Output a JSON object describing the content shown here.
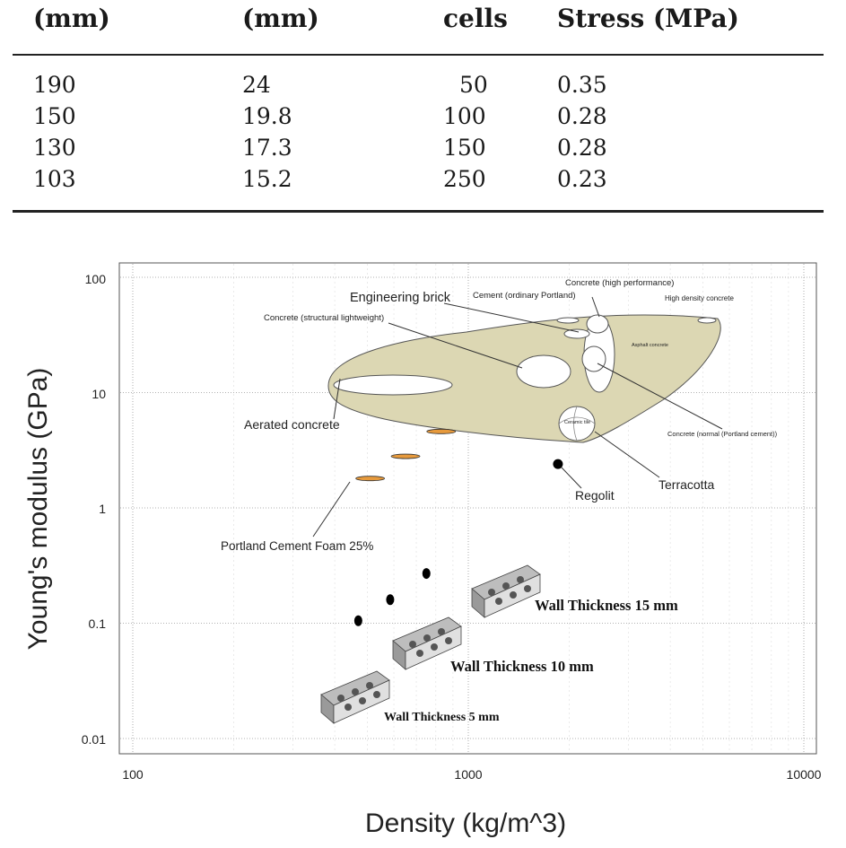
{
  "table": {
    "headers": [
      "(mm)",
      "(mm)",
      "cells",
      "Stress (MPa)"
    ],
    "rows": [
      [
        "190",
        "24",
        "50",
        "0.35"
      ],
      [
        "150",
        "19.8",
        "100",
        "0.28"
      ],
      [
        "130",
        "17.3",
        "150",
        "0.28"
      ],
      [
        "103",
        "15.2",
        "250",
        "0.23"
      ]
    ]
  },
  "chart_data": {
    "type": "scatter",
    "xlabel": "Density (kg/m^3)",
    "ylabel": "Young's modulus (GPa)",
    "x_scale": "log",
    "y_scale": "log",
    "xlim": [
      100,
      10000
    ],
    "ylim": [
      0.01,
      100
    ],
    "x_ticks": [
      "100",
      "1000",
      "10000"
    ],
    "y_ticks": [
      "100",
      "10",
      "1",
      "0.1",
      "0.01"
    ],
    "grid": true,
    "colors": {
      "region_fill": "#dcd7b3",
      "foam_fill": "#e79a3c",
      "points": "#000000"
    },
    "region_labels": [
      {
        "text": "Engineering brick",
        "density": 1800,
        "modulus": 35
      },
      {
        "text": "Cement (ordinary Portland)",
        "density": 2350,
        "modulus": 42
      },
      {
        "text": "Concrete (high performance)",
        "density": 2450,
        "modulus": 45
      },
      {
        "text": "High density concrete",
        "density": 5600,
        "modulus": 42
      },
      {
        "text": "Concrete (structural lightweight)",
        "density": 1900,
        "modulus": 14
      },
      {
        "text": "Asphalt concrete",
        "density": 2450,
        "modulus": 18
      },
      {
        "text": "Aerated concrete",
        "density": 400,
        "modulus": 12
      },
      {
        "text": "Ceramic tile",
        "density": 2400,
        "modulus": 5
      },
      {
        "text": "Concrete (normal (Portland cement))",
        "density": 2400,
        "modulus": 20
      },
      {
        "text": "Terracotta",
        "density": 2200,
        "modulus": 4.5
      },
      {
        "text": "Regolit",
        "density": 1900,
        "modulus": 2.3
      },
      {
        "text": "Portland Cement Foam 25%",
        "density": 500,
        "modulus": 1.8
      }
    ],
    "foam_series": [
      {
        "density": 510,
        "modulus": 1.8
      },
      {
        "density": 650,
        "modulus": 2.8
      },
      {
        "density": 830,
        "modulus": 4.6
      }
    ],
    "lattice_series": [
      {
        "density": 470,
        "modulus": 0.105
      },
      {
        "density": 585,
        "modulus": 0.16
      },
      {
        "density": 750,
        "modulus": 0.27
      }
    ],
    "regolit_point": {
      "density": 1850,
      "modulus": 2.4
    },
    "lattice_labels": [
      "Wall Thickness 15 mm",
      "Wall Thickness 10 mm",
      "Wall Thickness 5 mm"
    ]
  }
}
